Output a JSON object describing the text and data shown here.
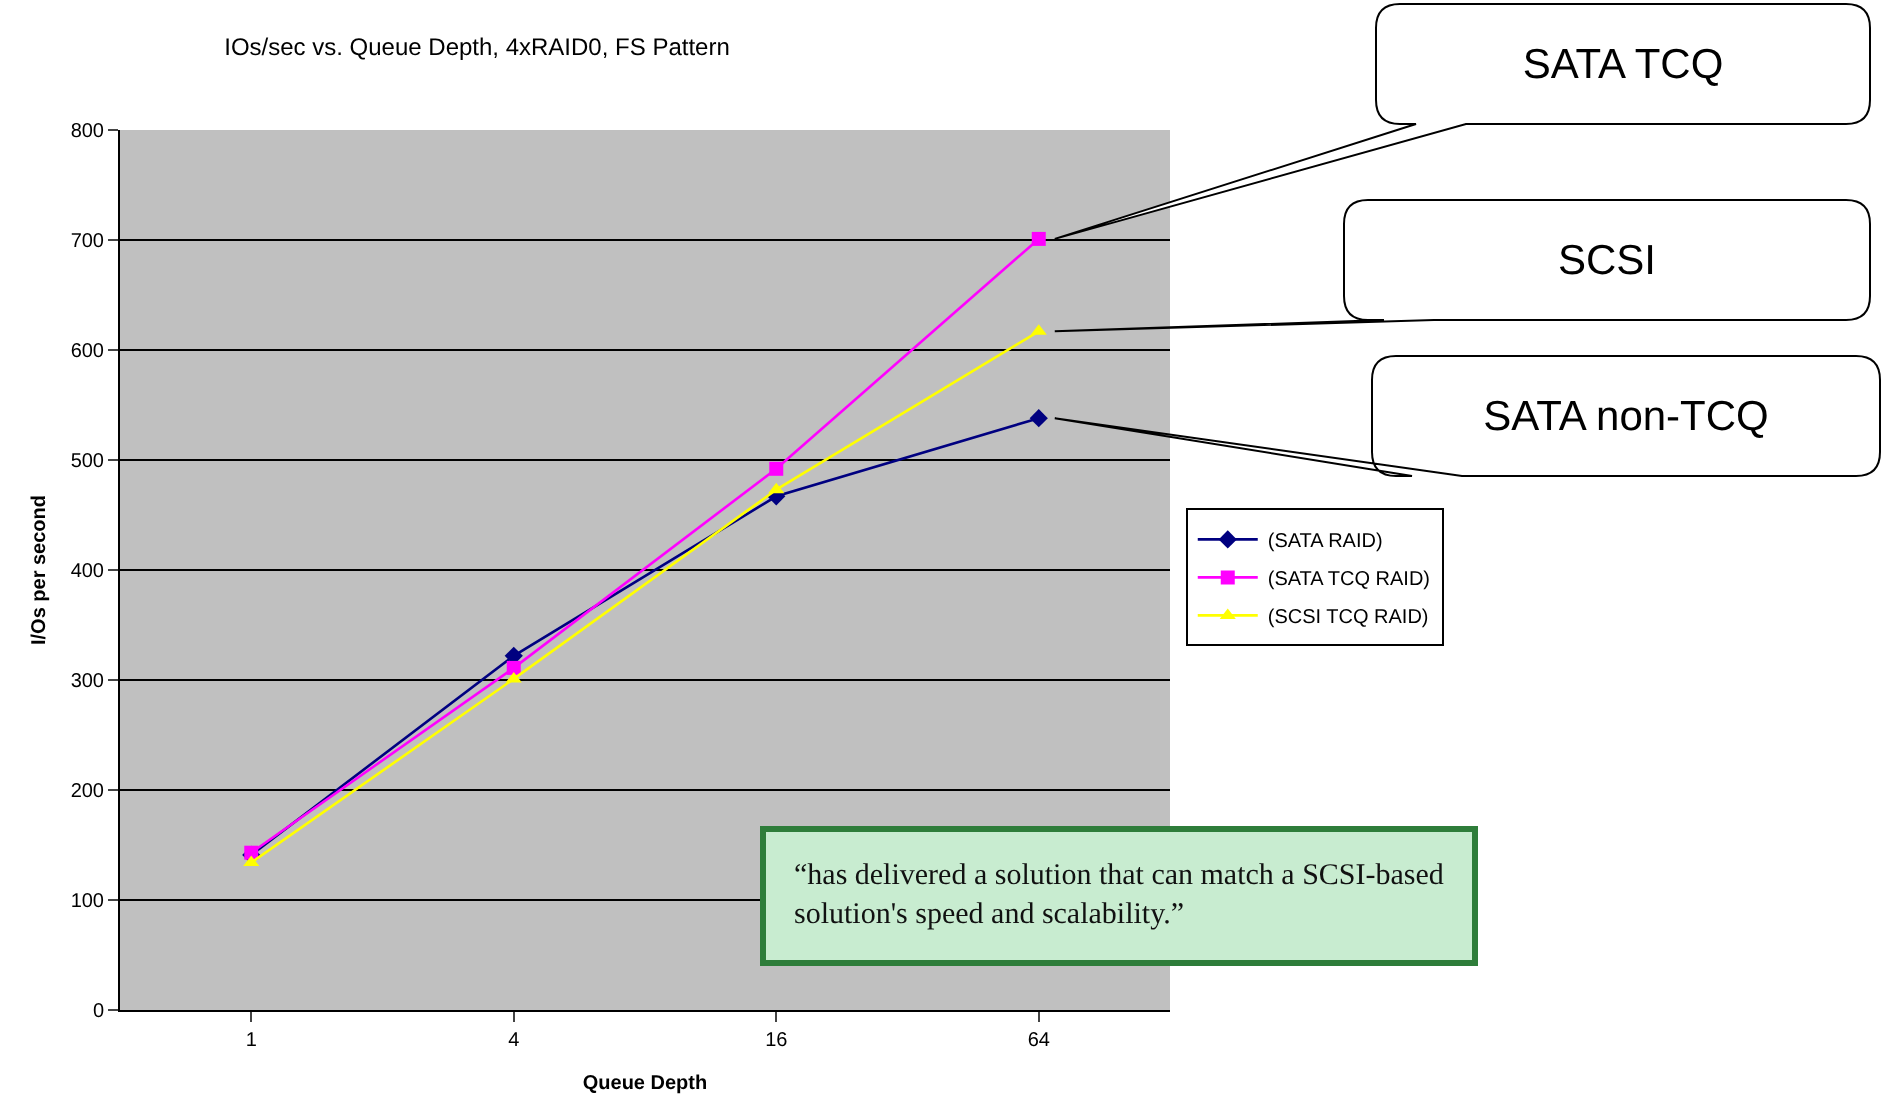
{
  "chart_data": {
    "type": "line",
    "title": "IOs/sec vs. Queue Depth, 4xRAID0, FS Pattern",
    "xlabel": "Queue Depth",
    "ylabel": "I/Os per second",
    "categories": [
      "1",
      "4",
      "16",
      "64"
    ],
    "series": [
      {
        "name": "(SATA RAID)",
        "color": "#000080",
        "marker": "diamond",
        "values": [
          141,
          322,
          467,
          538
        ]
      },
      {
        "name": "(SATA TCQ RAID)",
        "color": "#ff00ff",
        "marker": "square",
        "values": [
          143,
          311,
          492,
          701
        ]
      },
      {
        "name": "(SCSI TCQ RAID)",
        "color": "#ffff00",
        "marker": "triangle",
        "values": [
          134,
          301,
          473,
          617
        ]
      }
    ],
    "ylim": [
      0,
      800
    ],
    "yticks": [
      0,
      100,
      200,
      300,
      400,
      500,
      600,
      700,
      800
    ],
    "grid": "y",
    "legend": "right",
    "line_style": "solid",
    "annotations": [
      "SATA TCQ",
      "SCSI",
      "SATA non-TCQ",
      "“has delivered a solution that can match a SCSI-based solution's speed and scalability.”"
    ]
  }
}
